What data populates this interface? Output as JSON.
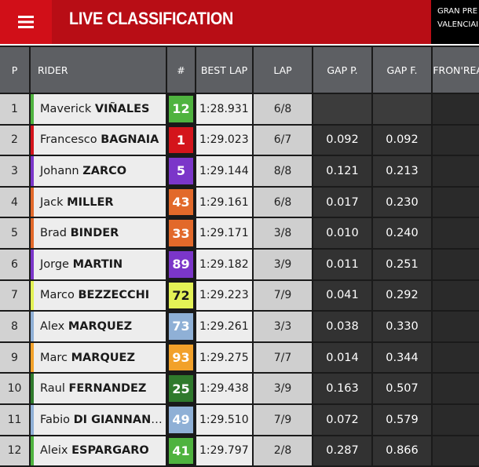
{
  "header": {
    "title": "LIVE CLASSIFICATION",
    "event_line1": "GRAN PRE",
    "event_line2": "VALENCIAI",
    "menu_icon": "hamburger-menu-icon",
    "colors": {
      "bar": "#b80d15",
      "menu": "#d10f18"
    }
  },
  "table": {
    "columns": [
      "P",
      "RIDER",
      "#",
      "BEST LAP",
      "LAP",
      "GAP P.",
      "GAP F.",
      "FRONT/REAR"
    ],
    "columns_display": [
      "P",
      "RIDER",
      "#",
      "BEST LAP",
      "LAP",
      "GAP P.",
      "GAP F.",
      "FRON'REAR"
    ],
    "rows": [
      {
        "pos": "1",
        "first": "Maverick",
        "last": "VIÑALES",
        "number": "12",
        "color": "#4fb33f",
        "bar": "#4fb33f",
        "best": "1:28.931",
        "lap": "6/8",
        "gap_p": "",
        "gap_f": ""
      },
      {
        "pos": "2",
        "first": "Francesco",
        "last": "BAGNAIA",
        "number": "1",
        "color": "#d4141b",
        "bar": "#d4141b",
        "best": "1:29.023",
        "lap": "6/7",
        "gap_p": "0.092",
        "gap_f": "0.092"
      },
      {
        "pos": "3",
        "first": "Johann",
        "last": "ZARCO",
        "number": "5",
        "color": "#7b36c9",
        "bar": "#7b36c9",
        "best": "1:29.144",
        "lap": "8/8",
        "gap_p": "0.121",
        "gap_f": "0.213"
      },
      {
        "pos": "4",
        "first": "Jack",
        "last": "MILLER",
        "number": "43",
        "color": "#e2692a",
        "bar": "#e2692a",
        "best": "1:29.161",
        "lap": "6/8",
        "gap_p": "0.017",
        "gap_f": "0.230"
      },
      {
        "pos": "5",
        "first": "Brad",
        "last": "BINDER",
        "number": "33",
        "color": "#e2692a",
        "bar": "#e2692a",
        "best": "1:29.171",
        "lap": "3/8",
        "gap_p": "0.010",
        "gap_f": "0.240"
      },
      {
        "pos": "6",
        "first": "Jorge",
        "last": "MARTIN",
        "number": "89",
        "color": "#7b36c9",
        "bar": "#7b36c9",
        "best": "1:29.182",
        "lap": "3/9",
        "gap_p": "0.011",
        "gap_f": "0.251"
      },
      {
        "pos": "7",
        "first": "Marco",
        "last": "BEZZECCHI",
        "number": "72",
        "color": "#e3f256",
        "bar": "#e3f256",
        "best": "1:29.223",
        "lap": "7/9",
        "gap_p": "0.041",
        "gap_f": "0.292",
        "dark_text": true
      },
      {
        "pos": "8",
        "first": "Alex",
        "last": "MARQUEZ",
        "number": "73",
        "color": "#8fb0d6",
        "bar": "#8fb0d6",
        "best": "1:29.261",
        "lap": "3/3",
        "gap_p": "0.038",
        "gap_f": "0.330"
      },
      {
        "pos": "9",
        "first": "Marc",
        "last": "MARQUEZ",
        "number": "93",
        "color": "#f2a12a",
        "bar": "#f2a12a",
        "best": "1:29.275",
        "lap": "7/7",
        "gap_p": "0.014",
        "gap_f": "0.344"
      },
      {
        "pos": "10",
        "first": "Raul",
        "last": "FERNANDEZ",
        "number": "25",
        "color": "#2f7a2c",
        "bar": "#2f7a2c",
        "best": "1:29.438",
        "lap": "3/9",
        "gap_p": "0.163",
        "gap_f": "0.507"
      },
      {
        "pos": "11",
        "first": "Fabio",
        "last": "DI GIANNANTO...",
        "number": "49",
        "color": "#8fb0d6",
        "bar": "#8fb0d6",
        "best": "1:29.510",
        "lap": "7/9",
        "gap_p": "0.072",
        "gap_f": "0.579"
      },
      {
        "pos": "12",
        "first": "Aleix",
        "last": "ESPARGARO",
        "number": "41",
        "color": "#4fb33f",
        "bar": "#4fb33f",
        "best": "1:29.797",
        "lap": "2/8",
        "gap_p": "0.287",
        "gap_f": "0.866"
      }
    ]
  }
}
